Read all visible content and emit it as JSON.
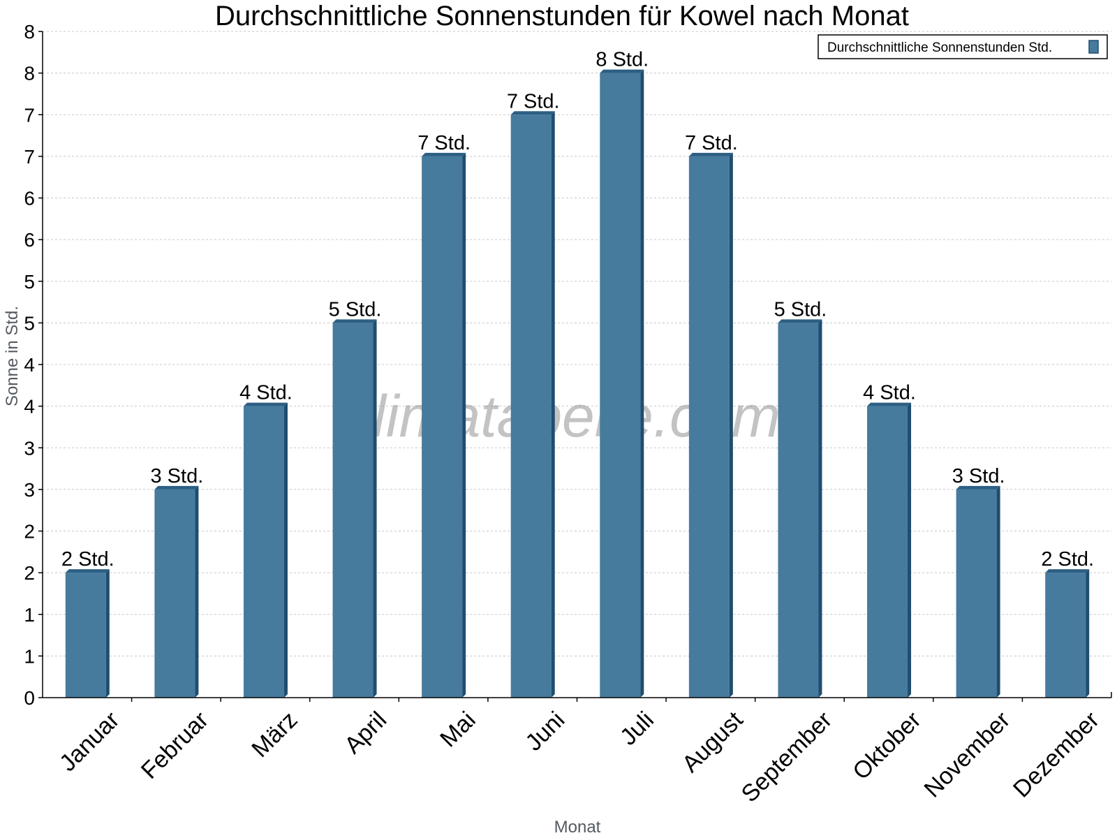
{
  "chart_data": {
    "type": "bar",
    "title": "Durchschnittliche Sonnenstunden für Kowel nach Monat",
    "xlabel": "Monat",
    "ylabel": "Sonne in Std.",
    "ylim": [
      0,
      8
    ],
    "y_tick_labels": [
      "0",
      "1",
      "1",
      "2",
      "2",
      "3",
      "3",
      "4",
      "4",
      "5",
      "5",
      "6",
      "6",
      "7",
      "7",
      "8",
      "8"
    ],
    "categories": [
      "Januar",
      "Februar",
      "März",
      "April",
      "Mai",
      "Juni",
      "Juli",
      "August",
      "September",
      "Oktober",
      "November",
      "Dezember"
    ],
    "series": [
      {
        "name": "Durchschnittliche Sonnenstunden Std.",
        "values": [
          1.5,
          2.5,
          3.5,
          4.5,
          6.5,
          7,
          7.5,
          6.5,
          4.5,
          3.5,
          2.5,
          1.5
        ],
        "data_labels": [
          "2 Std.",
          "3 Std.",
          "4 Std.",
          "5 Std.",
          "7 Std.",
          "7 Std.",
          "8 Std.",
          "7 Std.",
          "5 Std.",
          "4 Std.",
          "3 Std.",
          "2 Std."
        ]
      }
    ],
    "grid": true,
    "legend_position": "top-right",
    "colors": {
      "bar_front": "#467b9e",
      "bar_side": "#1f4d6e",
      "bar_top": "#2c5f83",
      "grid": "#c8c8c8"
    },
    "watermark": "klimatabelle.com"
  }
}
